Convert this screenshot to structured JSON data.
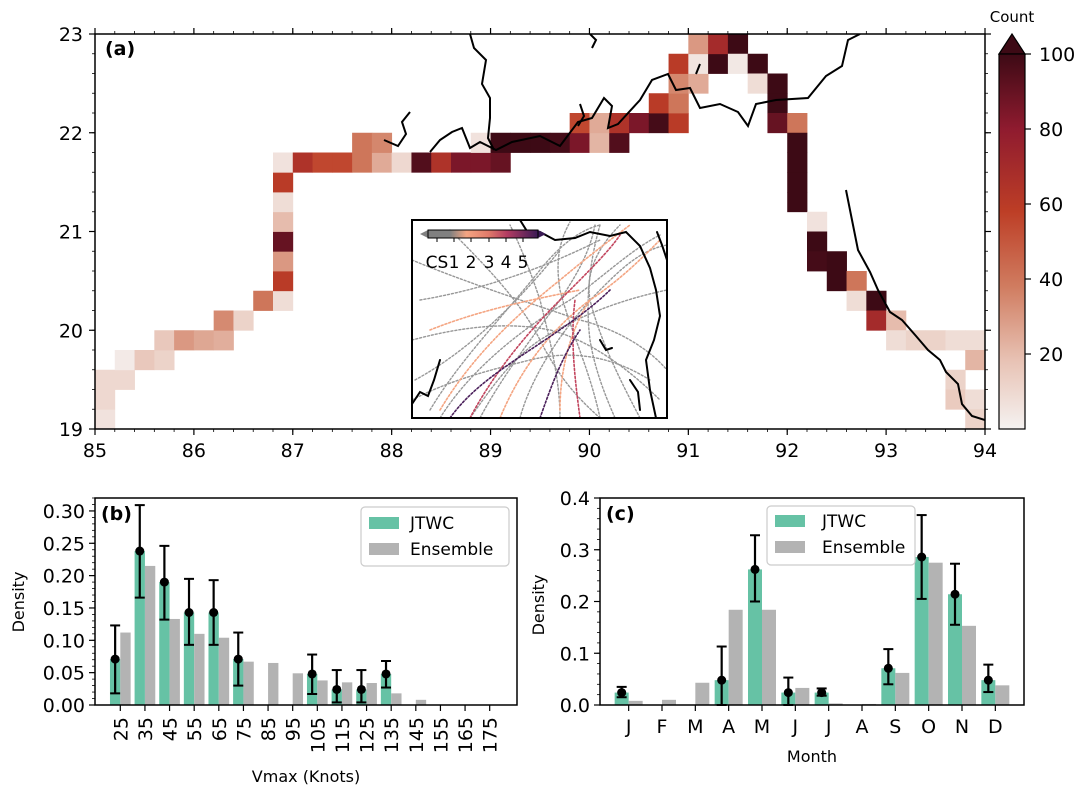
{
  "chart_data": [
    {
      "id": "a",
      "type": "heatmap",
      "panel_label": "(a)",
      "xlim": [
        85,
        94
      ],
      "ylim": [
        19,
        23
      ],
      "x_ticks": [
        85,
        86,
        87,
        88,
        89,
        90,
        91,
        92,
        93,
        94
      ],
      "y_ticks": [
        19,
        20,
        21,
        22,
        23
      ],
      "colorbar": {
        "title": "Count",
        "min": 0,
        "max": 100,
        "extend": "max",
        "ticks": [
          20,
          40,
          60,
          80,
          100
        ]
      },
      "cell_size_deg": 0.2,
      "cells": [
        [
          85.0,
          19.0,
          6
        ],
        [
          85.0,
          19.2,
          10
        ],
        [
          85.0,
          19.4,
          10
        ],
        [
          85.2,
          19.4,
          10
        ],
        [
          85.2,
          19.6,
          3
        ],
        [
          85.4,
          19.6,
          16
        ],
        [
          85.6,
          19.6,
          12
        ],
        [
          85.6,
          19.8,
          16
        ],
        [
          85.8,
          19.8,
          30
        ],
        [
          86.0,
          19.8,
          26
        ],
        [
          86.2,
          19.8,
          24
        ],
        [
          86.2,
          20.0,
          34
        ],
        [
          86.4,
          20.0,
          12
        ],
        [
          86.6,
          20.2,
          40
        ],
        [
          86.8,
          20.2,
          8
        ],
        [
          86.8,
          20.4,
          60
        ],
        [
          86.8,
          20.6,
          30
        ],
        [
          86.8,
          20.8,
          90
        ],
        [
          86.8,
          21.0,
          20
        ],
        [
          86.8,
          21.2,
          8
        ],
        [
          86.8,
          21.4,
          60
        ],
        [
          86.8,
          21.6,
          6
        ],
        [
          87.0,
          21.6,
          65
        ],
        [
          87.2,
          21.6,
          55
        ],
        [
          87.4,
          21.6,
          55
        ],
        [
          87.6,
          21.6,
          40
        ],
        [
          87.8,
          21.6,
          25
        ],
        [
          87.6,
          21.8,
          40
        ],
        [
          87.8,
          21.8,
          35
        ],
        [
          88.0,
          21.6,
          10
        ],
        [
          88.2,
          21.6,
          95
        ],
        [
          88.4,
          21.6,
          65
        ],
        [
          88.6,
          21.6,
          85
        ],
        [
          88.8,
          21.6,
          85
        ],
        [
          89.0,
          21.6,
          90
        ],
        [
          88.8,
          21.8,
          6
        ],
        [
          89.0,
          21.8,
          100
        ],
        [
          89.2,
          21.8,
          100
        ],
        [
          89.4,
          21.8,
          100
        ],
        [
          89.6,
          21.8,
          98
        ],
        [
          89.8,
          21.8,
          85
        ],
        [
          90.0,
          21.8,
          22
        ],
        [
          90.2,
          21.8,
          95
        ],
        [
          89.8,
          22.0,
          55
        ],
        [
          90.0,
          22.0,
          25
        ],
        [
          90.2,
          22.0,
          65
        ],
        [
          90.4,
          22.0,
          85
        ],
        [
          90.6,
          22.0,
          98
        ],
        [
          90.8,
          22.0,
          60
        ],
        [
          90.6,
          22.2,
          60
        ],
        [
          90.8,
          22.2,
          40
        ],
        [
          90.8,
          22.4,
          35
        ],
        [
          91.0,
          22.4,
          25
        ],
        [
          90.8,
          22.6,
          60
        ],
        [
          91.0,
          22.6,
          5
        ],
        [
          91.2,
          22.6,
          100
        ],
        [
          91.0,
          22.8,
          30
        ],
        [
          91.2,
          22.8,
          70
        ],
        [
          91.4,
          22.8,
          100
        ],
        [
          91.4,
          22.6,
          4
        ],
        [
          91.6,
          22.6,
          100
        ],
        [
          91.6,
          22.4,
          8
        ],
        [
          91.8,
          22.4,
          100
        ],
        [
          91.8,
          22.2,
          100
        ],
        [
          91.8,
          22.0,
          90
        ],
        [
          92.0,
          22.0,
          40
        ],
        [
          92.0,
          21.8,
          100
        ],
        [
          92.0,
          21.6,
          100
        ],
        [
          92.0,
          21.4,
          100
        ],
        [
          92.0,
          21.2,
          100
        ],
        [
          92.2,
          21.0,
          6
        ],
        [
          92.2,
          20.8,
          100
        ],
        [
          92.2,
          20.6,
          98
        ],
        [
          92.4,
          20.6,
          100
        ],
        [
          92.4,
          20.4,
          100
        ],
        [
          92.6,
          20.4,
          40
        ],
        [
          92.6,
          20.2,
          8
        ],
        [
          92.8,
          20.2,
          100
        ],
        [
          92.8,
          20.0,
          70
        ],
        [
          93.0,
          20.0,
          20
        ],
        [
          93.0,
          19.8,
          8
        ],
        [
          93.2,
          19.8,
          12
        ],
        [
          93.4,
          19.8,
          12
        ],
        [
          93.6,
          19.8,
          8
        ],
        [
          93.8,
          19.8,
          8
        ],
        [
          93.8,
          19.6,
          22
        ],
        [
          93.6,
          19.4,
          12
        ],
        [
          93.6,
          19.2,
          15
        ],
        [
          93.8,
          19.2,
          8
        ],
        [
          93.8,
          19.0,
          12
        ]
      ],
      "inset": {
        "colorbar_labels": [
          "CS",
          "1",
          "2",
          "3",
          "4",
          "5"
        ],
        "category_colors": [
          "#808080",
          "#f4a582",
          "#e8826a",
          "#c2455e",
          "#8e2a60",
          "#4a1f5a"
        ]
      }
    },
    {
      "id": "b",
      "type": "bar",
      "panel_label": "(b)",
      "xlabel": "Vmax (Knots)",
      "ylabel": "Density",
      "ylim": [
        0,
        0.32
      ],
      "y_ticks": [
        0.0,
        0.05,
        0.1,
        0.15,
        0.2,
        0.25,
        0.3
      ],
      "y_tick_labels": [
        "0.00",
        "0.05",
        "0.10",
        "0.15",
        "0.20",
        "0.25",
        "0.30"
      ],
      "categories": [
        "25",
        "35",
        "45",
        "55",
        "65",
        "75",
        "85",
        "95",
        "105",
        "115",
        "125",
        "135",
        "145",
        "155",
        "165",
        "175"
      ],
      "series": [
        {
          "name": "JTWC",
          "color": "#66c2a5",
          "values": [
            0.071,
            0.238,
            0.19,
            0.143,
            0.143,
            0.071,
            0,
            0,
            0.048,
            0.024,
            0.024,
            0.048,
            0,
            0,
            0,
            0
          ]
        },
        {
          "name": "Ensemble",
          "color": "#b3b3b3",
          "values": [
            0.112,
            0.215,
            0.133,
            0.11,
            0.104,
            0.067,
            0.065,
            0.049,
            0.038,
            0.035,
            0.034,
            0.018,
            0.008,
            0,
            0,
            0
          ]
        }
      ],
      "error_bars": {
        "lower": [
          0.018,
          0.166,
          0.132,
          0.093,
          0.093,
          0.03,
          null,
          null,
          0.017,
          0.004,
          0.004,
          0.027,
          null,
          null,
          null,
          null
        ],
        "upper": [
          0.123,
          0.309,
          0.246,
          0.195,
          0.193,
          0.112,
          null,
          null,
          0.078,
          0.054,
          0.054,
          0.068,
          null,
          null,
          null,
          null
        ]
      },
      "legend": {
        "placement": "top-right",
        "entries": [
          "JTWC",
          "Ensemble"
        ]
      }
    },
    {
      "id": "c",
      "type": "bar",
      "panel_label": "(c)",
      "xlabel": "Month",
      "ylabel": "Density",
      "ylim": [
        0,
        0.4
      ],
      "y_ticks": [
        0.0,
        0.1,
        0.2,
        0.3,
        0.4
      ],
      "y_tick_labels": [
        "0.0",
        "0.1",
        "0.2",
        "0.3",
        "0.4"
      ],
      "categories": [
        "J",
        "F",
        "M",
        "A",
        "M",
        "J",
        "J",
        "A",
        "S",
        "O",
        "N",
        "D"
      ],
      "series": [
        {
          "name": "JTWC",
          "color": "#66c2a5",
          "values": [
            0.024,
            0,
            0,
            0.048,
            0.262,
            0.024,
            0.024,
            0,
            0.071,
            0.286,
            0.214,
            0.048
          ]
        },
        {
          "name": "Ensemble",
          "color": "#b3b3b3",
          "values": [
            0.008,
            0.01,
            0.043,
            0.184,
            0.184,
            0.033,
            0.003,
            0.002,
            0.062,
            0.275,
            0.153,
            0.038
          ]
        }
      ],
      "error_bars": {
        "lower": [
          0.015,
          null,
          null,
          0.0,
          0.2,
          0.0,
          0.018,
          null,
          0.04,
          0.205,
          0.155,
          0.025
        ],
        "upper": [
          0.035,
          null,
          null,
          0.113,
          0.328,
          0.053,
          0.032,
          null,
          0.108,
          0.367,
          0.273,
          0.078
        ]
      },
      "legend": {
        "placement": "top-center",
        "entries": [
          "JTWC",
          "Ensemble"
        ]
      }
    }
  ]
}
